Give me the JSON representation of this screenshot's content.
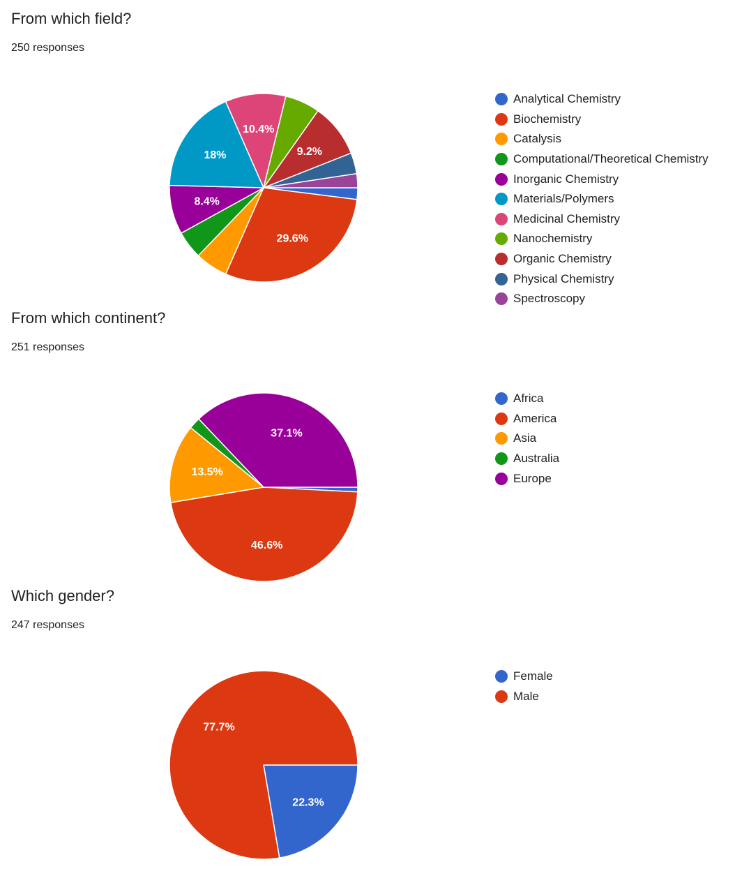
{
  "charts": [
    {
      "title": "From which field?",
      "responses": "250 responses",
      "chart_data": {
        "type": "pie",
        "title": "From which field?",
        "categories": [
          "Analytical Chemistry",
          "Biochemistry",
          "Catalysis",
          "Computational/Theoretical Chemistry",
          "Inorganic Chemistry",
          "Materials/Polymers",
          "Medicinal Chemistry",
          "Nanochemistry",
          "Organic Chemistry",
          "Physical Chemistry",
          "Spectroscopy"
        ],
        "values": [
          2.0,
          29.6,
          5.6,
          4.8,
          8.4,
          18.0,
          10.4,
          6.0,
          9.2,
          3.6,
          2.4
        ],
        "data_labels": [
          "",
          "29.6%",
          "",
          "",
          "8.4%",
          "18%",
          "10.4%",
          "",
          "9.2%",
          "",
          ""
        ],
        "colors": [
          "#3366cc",
          "#dc3912",
          "#ff9900",
          "#109618",
          "#990099",
          "#0099c6",
          "#dd4477",
          "#66aa00",
          "#b82e2e",
          "#316395",
          "#994499"
        ],
        "legend_position": "right"
      }
    },
    {
      "title": "From which continent?",
      "responses": "251 responses",
      "chart_data": {
        "type": "pie",
        "title": "From which continent?",
        "categories": [
          "Africa",
          "America",
          "Asia",
          "Australia",
          "Europe"
        ],
        "values": [
          0.8,
          46.6,
          13.5,
          2.0,
          37.1
        ],
        "data_labels": [
          "",
          "46.6%",
          "13.5%",
          "",
          "37.1%"
        ],
        "colors": [
          "#3366cc",
          "#dc3912",
          "#ff9900",
          "#109618",
          "#990099"
        ],
        "legend_position": "right"
      }
    },
    {
      "title": "Which gender?",
      "responses": "247 responses",
      "chart_data": {
        "type": "pie",
        "title": "Which gender?",
        "categories": [
          "Female",
          "Male"
        ],
        "values": [
          22.3,
          77.7
        ],
        "data_labels": [
          "22.3%",
          "77.7%"
        ],
        "colors": [
          "#3366cc",
          "#dc3912"
        ],
        "legend_position": "right"
      }
    }
  ]
}
